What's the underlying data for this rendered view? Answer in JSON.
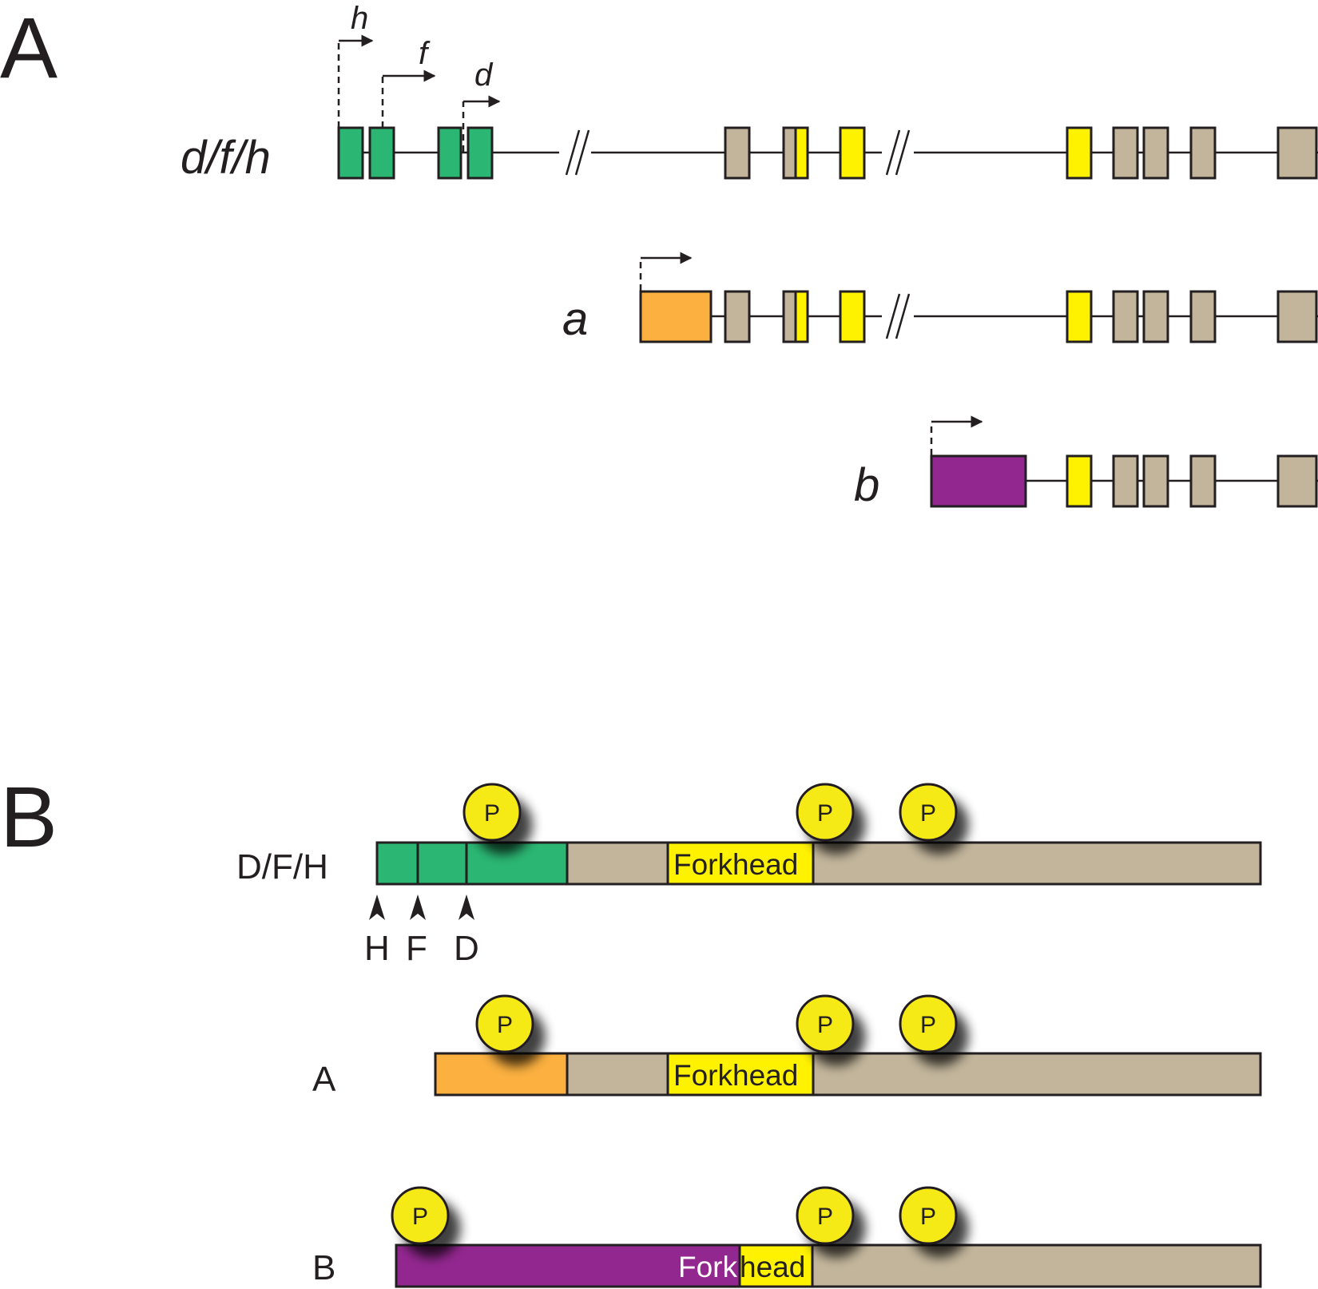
{
  "panels": {
    "a_label": "A",
    "b_label": "B"
  },
  "colors": {
    "green": "#2bb673",
    "orange": "#fbb040",
    "purple": "#92278f",
    "yellow": "#fff200",
    "tan": "#c2b59b",
    "outline": "#231f20",
    "phospho": "#f5ea14"
  },
  "genes": [
    {
      "label": "d/f/h",
      "tss": [
        "h",
        "f",
        "d"
      ]
    },
    {
      "label": "a"
    },
    {
      "label": "b"
    }
  ],
  "proteins": [
    {
      "label": "D/F/H",
      "domain": "Forkhead",
      "phospho_marker": "P",
      "site_labels": [
        "H",
        "F",
        "D"
      ]
    },
    {
      "label": "A",
      "domain": "Forkhead",
      "phospho_marker": "P"
    },
    {
      "label": "B",
      "domain_part1": "Fork",
      "domain_part2": "head",
      "phospho_marker": "P"
    }
  ]
}
